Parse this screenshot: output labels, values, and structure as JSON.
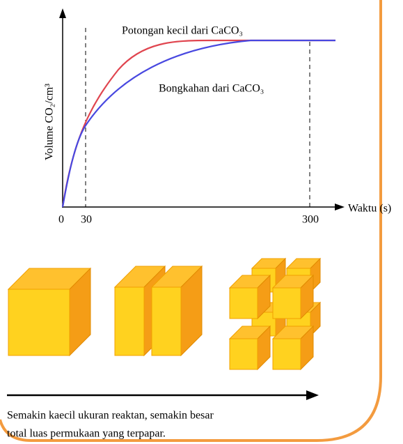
{
  "graph": {
    "y_axis_label": "Volume CO₂/cm³",
    "x_axis_label": "Waktu (s)",
    "x_ticks": [
      "0",
      "30",
      "300"
    ],
    "curves": [
      {
        "label": "Potongan kecil dari CaCO₃"
      },
      {
        "label": "Bongkahan dari CaCO₃"
      }
    ]
  },
  "caption": {
    "lines": [
      "Semakin kaecil ukuran reaktan, semakin besar",
      "total luas permukaan yang terpapar."
    ]
  }
}
